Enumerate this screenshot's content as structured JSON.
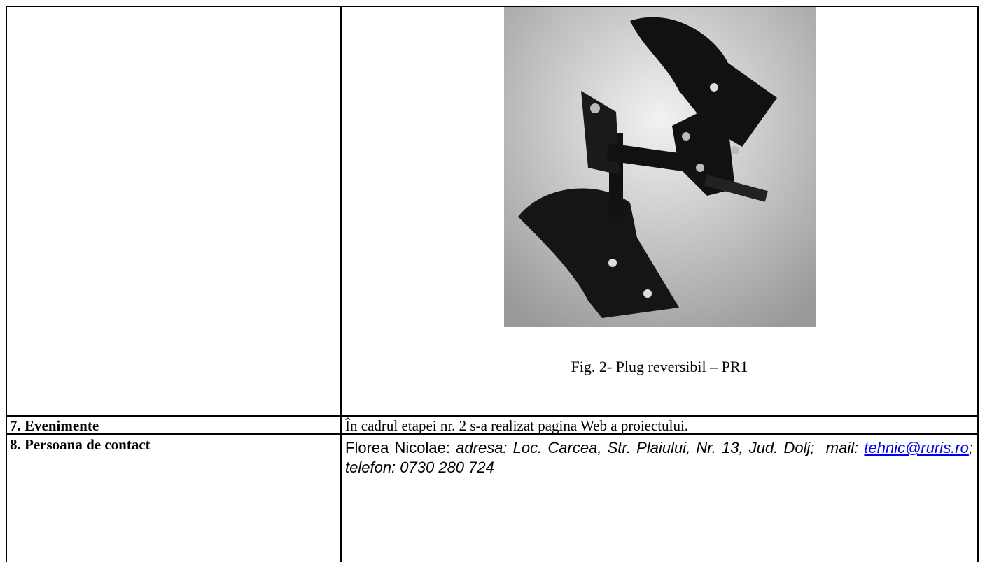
{
  "table": {
    "rows": [
      {
        "figure": {
          "caption": "Fig. 2- Plug reversibil – PR1"
        }
      },
      {
        "label": "7. Evenimente",
        "content": "În cadrul etapei nr. 2 s-a realizat pagina Web a proiectului."
      },
      {
        "label": "8. Persoana de contact",
        "contact": {
          "name": "Florea Nicolae:",
          "details_before_link": "adresa: Loc. Carcea, Str. Plaiului, Nr. 13, Jud. Dolj;  mail:",
          "email": "tehnic@ruris.ro",
          "details_after_link": ";  telefon: 0730 280 724"
        }
      }
    ]
  }
}
